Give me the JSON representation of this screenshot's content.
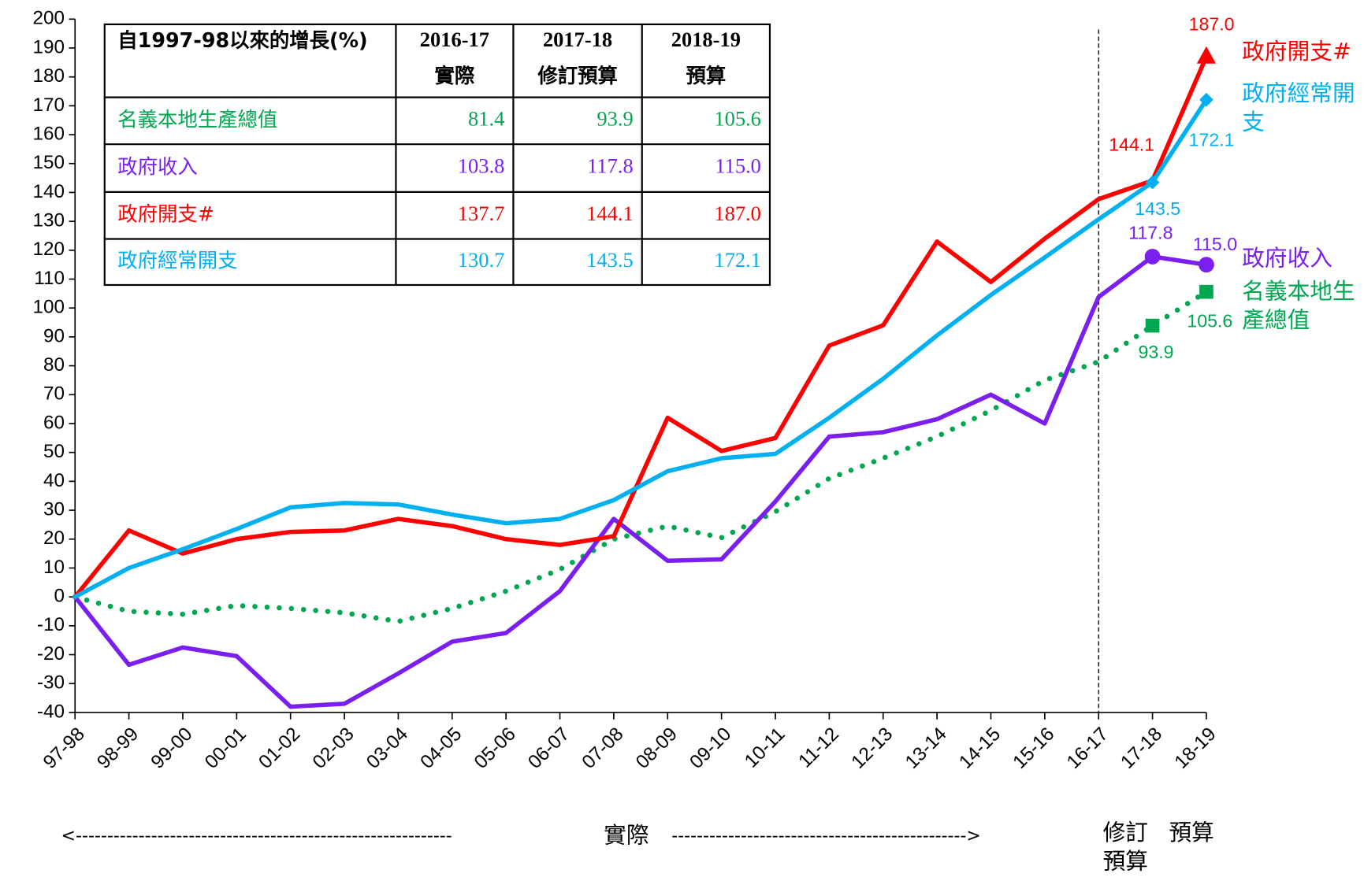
{
  "chart_data": {
    "type": "line",
    "categories": [
      "97-98",
      "98-99",
      "99-00",
      "00-01",
      "01-02",
      "02-03",
      "03-04",
      "04-05",
      "05-06",
      "06-07",
      "07-08",
      "08-09",
      "09-10",
      "10-11",
      "11-12",
      "12-13",
      "13-14",
      "14-15",
      "15-16",
      "16-17",
      "17-18",
      "18-19"
    ],
    "ylim": [
      -40,
      200
    ],
    "yticks": [
      -40,
      -30,
      -20,
      -10,
      0,
      10,
      20,
      30,
      40,
      50,
      60,
      70,
      80,
      90,
      100,
      110,
      120,
      130,
      140,
      150,
      160,
      170,
      180,
      190,
      200
    ],
    "series": [
      {
        "name": "名義本地生產總值",
        "color": "#00a650",
        "style": "dotted",
        "marker": "square",
        "values": [
          0,
          -5,
          -6,
          -3,
          -4,
          -5.5,
          -8.5,
          -4,
          2,
          9.5,
          20,
          24.5,
          20.5,
          29.5,
          41,
          48,
          55.5,
          64.5,
          75,
          81.4,
          93.9,
          105.6
        ],
        "value_labels": [
          null,
          null,
          null,
          null,
          null,
          null,
          null,
          null,
          null,
          null,
          null,
          null,
          null,
          null,
          null,
          null,
          null,
          null,
          null,
          null,
          "93.9",
          "105.6"
        ]
      },
      {
        "name": "政府收入",
        "color": "#7a1fef",
        "style": "solid",
        "marker": "circle",
        "values": [
          0,
          -23.5,
          -17.5,
          -20.5,
          -38,
          -37,
          -26.5,
          -15.5,
          -12.5,
          2,
          27,
          12.5,
          13,
          33,
          55.5,
          57,
          61.5,
          70,
          60,
          103.8,
          117.8,
          115.0
        ],
        "value_labels": [
          null,
          null,
          null,
          null,
          null,
          null,
          null,
          null,
          null,
          null,
          null,
          null,
          null,
          null,
          null,
          null,
          null,
          null,
          null,
          null,
          "117.8",
          "115.0"
        ]
      },
      {
        "name": "政府開支#",
        "color": "#ff0000",
        "style": "solid",
        "marker": "triangle",
        "values": [
          0,
          23,
          15,
          20,
          22.5,
          23,
          27,
          24.5,
          20,
          18,
          21,
          62,
          50.5,
          55,
          87,
          94,
          123,
          109,
          124,
          137.7,
          144.1,
          187.0
        ],
        "value_labels": [
          null,
          null,
          null,
          null,
          null,
          null,
          null,
          null,
          null,
          null,
          null,
          null,
          null,
          null,
          null,
          null,
          null,
          null,
          null,
          null,
          "144.1",
          "187.0"
        ]
      },
      {
        "name": "政府經常開支",
        "color": "#00b0f0",
        "style": "solid",
        "marker": "diamond",
        "values": [
          0,
          10,
          16.5,
          23.5,
          31,
          32.5,
          32,
          28.5,
          25.5,
          27,
          33.5,
          43.5,
          48,
          49.5,
          62,
          75.5,
          90.5,
          104.5,
          117.5,
          130.7,
          143.5,
          172.1
        ],
        "value_labels": [
          null,
          null,
          null,
          null,
          null,
          null,
          null,
          null,
          null,
          null,
          null,
          null,
          null,
          null,
          null,
          null,
          null,
          null,
          null,
          null,
          "143.5",
          "172.1"
        ]
      }
    ],
    "table": {
      "header": "自1997-98以來的增長(%)",
      "columns": [
        {
          "year": "2016-17",
          "label": "實際"
        },
        {
          "year": "2017-18",
          "label": "修訂預算"
        },
        {
          "year": "2018-19",
          "label": "預算"
        }
      ]
    },
    "periods": [
      "實際",
      "修訂預算",
      "預算"
    ]
  }
}
